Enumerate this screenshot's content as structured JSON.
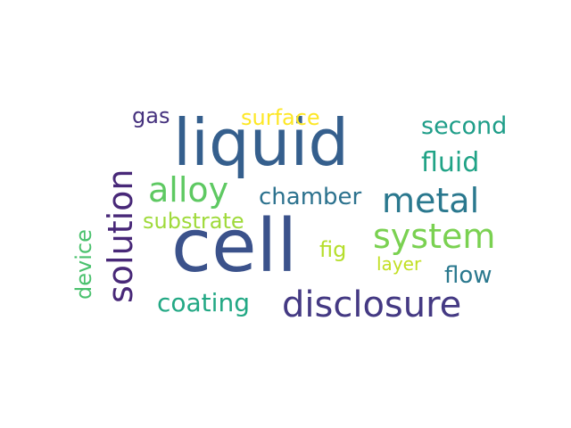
{
  "words": [
    {
      "id": "cell",
      "text": "cell",
      "color": "#3b528b"
    },
    {
      "id": "liquid",
      "text": "liquid",
      "color": "#355f8d"
    },
    {
      "id": "disclosure",
      "text": "disclosure",
      "color": "#443983"
    },
    {
      "id": "system",
      "text": "system",
      "color": "#7ad151"
    },
    {
      "id": "solution",
      "text": "solution",
      "color": "#482878"
    },
    {
      "id": "metal",
      "text": "metal",
      "color": "#2a788e"
    },
    {
      "id": "alloy",
      "text": "alloy",
      "color": "#5ec962"
    },
    {
      "id": "fluid",
      "text": "fluid",
      "color": "#20a386"
    },
    {
      "id": "chamber",
      "text": "chamber",
      "color": "#2c728e"
    },
    {
      "id": "coating",
      "text": "coating",
      "color": "#22a884"
    },
    {
      "id": "second",
      "text": "second",
      "color": "#1f9e89"
    },
    {
      "id": "substrate",
      "text": "substrate",
      "color": "#9fda3a"
    },
    {
      "id": "surface",
      "text": "surface",
      "color": "#fde725"
    },
    {
      "id": "flow",
      "text": "flow",
      "color": "#2a788e"
    },
    {
      "id": "device",
      "text": "device",
      "color": "#4ac16d"
    },
    {
      "id": "gas",
      "text": "gas",
      "color": "#46327e"
    },
    {
      "id": "fig",
      "text": "fig",
      "color": "#b5de2b"
    },
    {
      "id": "layer",
      "text": "layer",
      "color": "#c2df23"
    }
  ]
}
